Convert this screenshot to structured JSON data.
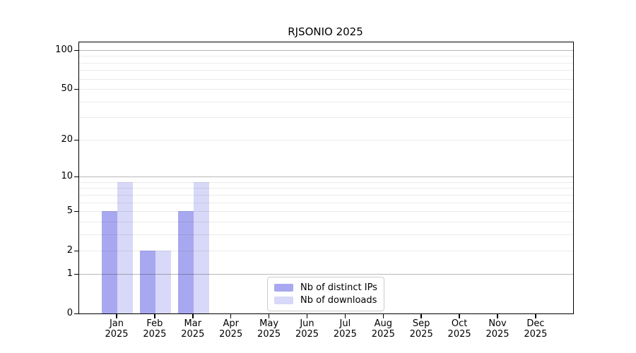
{
  "chart_data": {
    "type": "bar",
    "title": "RJSONIO 2025",
    "x_tick_labels": [
      [
        "Jan",
        "2025"
      ],
      [
        "Feb",
        "2025"
      ],
      [
        "Mar",
        "2025"
      ],
      [
        "Apr",
        "2025"
      ],
      [
        "May",
        "2025"
      ],
      [
        "Jun",
        "2025"
      ],
      [
        "Jul",
        "2025"
      ],
      [
        "Aug",
        "2025"
      ],
      [
        "Sep",
        "2025"
      ],
      [
        "Oct",
        "2025"
      ],
      [
        "Nov",
        "2025"
      ],
      [
        "Dec",
        "2025"
      ]
    ],
    "series": [
      {
        "name": "Nb of distinct IPs",
        "color": "#a8a8f0",
        "values": [
          5,
          2,
          5,
          0,
          0,
          0,
          0,
          0,
          0,
          0,
          0,
          0
        ]
      },
      {
        "name": "Nb of downloads",
        "color": "#d8d8f8",
        "values": [
          9,
          2,
          9,
          0,
          0,
          0,
          0,
          0,
          0,
          0,
          0,
          0
        ]
      }
    ],
    "y_axis": {
      "scale": "log10(1+x)",
      "tick_values": [
        0,
        1,
        2,
        5,
        10,
        20,
        50,
        100
      ],
      "major_gridlines": [
        1,
        10,
        100
      ],
      "minor_gridlines": [
        2,
        3,
        4,
        5,
        6,
        7,
        8,
        9,
        20,
        30,
        40,
        50,
        60,
        70,
        80,
        90
      ]
    },
    "legend": {
      "position": "inside-bottom-center",
      "labels": [
        "Nb of distinct IPs",
        "Nb of downloads"
      ]
    },
    "colors": {
      "frame": "#000000",
      "grid_major": "rgba(0,0,0,0.28)",
      "grid_minor": "rgba(0,0,0,0.08)",
      "background": "#ffffff"
    },
    "grid": true
  }
}
